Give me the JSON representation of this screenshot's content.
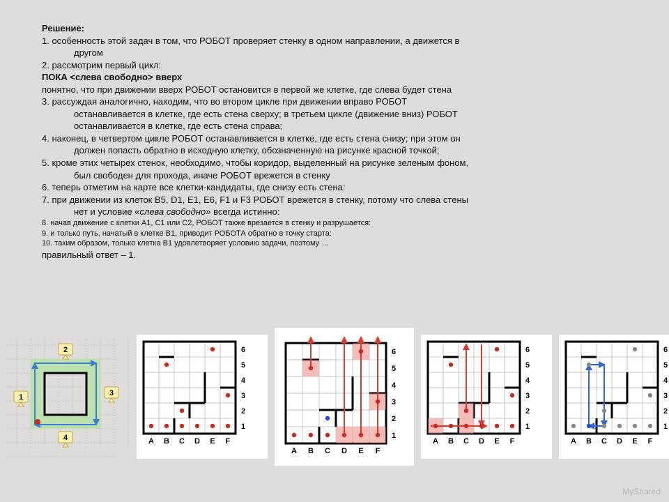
{
  "text": {
    "h": "Решение:",
    "p1": "1. особенность этой задач в том, что РОБОТ проверяет стенку в одном направлении, а движется в",
    "p1b": "другом",
    "p2": "2. рассмотрим первый цикл:",
    "p2b": "ПОКА <слева свободно> вверх",
    "p2c": "понятно, что при движении вверх РОБОТ остановится в первой же клетке, где слева будет стена",
    "p3": "3. рассуждая аналогично, находим, что во втором цикле при движении вправо РОБОТ",
    "p3b": "останавливается в клетке, где есть стена сверху; в третьем цикле (движение вниз) РОБОТ",
    "p3c": "останавливается в клетке, где есть стена справа;",
    "p4": "4. наконец, в четвертом цикле РОБОТ останавливается в клетке, где есть стена снизу; при этом он",
    "p4b": "должен попасть обратно в исходную клетку, обозначенную на рисунке красной точкой;",
    "p5": "5. кроме этих четырех стенок, необходимо, чтобы коридор, выделенный на рисунке зеленым фоном,",
    "p5b": "был свободен для прохода, иначе РОБОТ врежется в стенку",
    "p6": "6. теперь отметим на карте все клетки-кандидаты, где снизу есть стена:",
    "p7": "7. при движении из клеток B5, D1, E1, E6, F1 и F3 РОБОТ врежется в стенку, потому что слева стены",
    "p7b": "нет и условие «",
    "p7em": "слева свободно",
    "p7b2": "» всегда истинно:",
    "p8": "8. начав движение с клетки A1, C1 или C2, РОБОТ также врезается в стенку и разрушается:",
    "p9": "9. и только путь, начатый в клетке B1, приводит РОБОТА обратно в точку старта:",
    "p10": "10. таким образом, только клетка B1 удовлетворяет условию задачи, поэтому …",
    "ans": "правильный ответ – 1."
  },
  "grid": {
    "colLabels": [
      "A",
      "B",
      "C",
      "D",
      "E",
      "F"
    ],
    "rowLabels": [
      "1",
      "2",
      "3",
      "4",
      "5",
      "6"
    ],
    "cellSize": 22,
    "walls": [
      [
        "B",
        5,
        "top"
      ],
      [
        "E",
        6,
        "top"
      ],
      [
        "F",
        6,
        "top"
      ],
      [
        "F",
        3,
        "top"
      ],
      [
        "B",
        1,
        "right"
      ],
      [
        "C",
        2,
        "top"
      ],
      [
        "D",
        2,
        "top"
      ],
      [
        "C",
        2,
        "right"
      ],
      [
        "D",
        3,
        "right"
      ],
      [
        "D",
        4,
        "right"
      ]
    ],
    "dots": [
      {
        "c": "A",
        "r": 1
      },
      {
        "c": "B",
        "r": 1
      },
      {
        "c": "B",
        "r": 5
      },
      {
        "c": "C",
        "r": 1
      },
      {
        "c": "C",
        "r": 2
      },
      {
        "c": "D",
        "r": 1
      },
      {
        "c": "E",
        "r": 1
      },
      {
        "c": "E",
        "r": 6
      },
      {
        "c": "F",
        "r": 1
      },
      {
        "c": "F",
        "r": 3
      }
    ]
  },
  "fig1": {
    "callouts": [
      "1",
      "2",
      "3",
      "4"
    ],
    "corridorColor": "#b8e0a8",
    "calloutFill": "#fff3b0",
    "calloutBorder": "#c9a43a",
    "arrowColor": "#3a7fd4"
  },
  "fig3": {
    "hl": [
      "B5",
      "D1",
      "E1",
      "E6",
      "F1",
      "F3"
    ],
    "hlColor": "#f4a6a0"
  },
  "fig4": {
    "pathCells": [
      "A1",
      "C1",
      "C2"
    ],
    "arrowColor": "#de3b2f",
    "hlColor": "#f4a6a0"
  },
  "fig5": {
    "pathStart": "B1",
    "arrowColor": "#2f66d0"
  },
  "colors": {
    "gridLine": "#b8b8b8",
    "thickWall": "#000",
    "dot": "#cc2a1f",
    "paper": "#ffffff"
  },
  "watermark": "MyShared"
}
